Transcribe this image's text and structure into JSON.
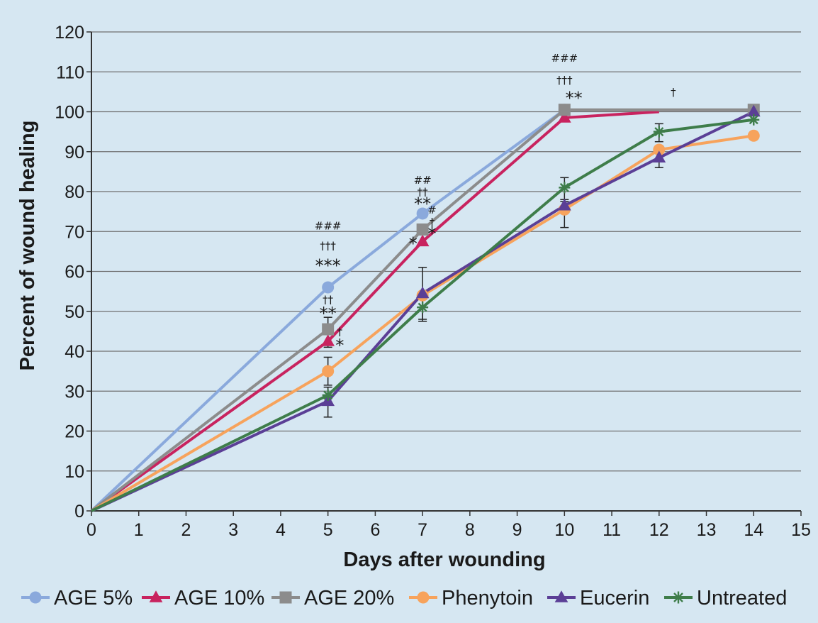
{
  "chart_data": {
    "type": "line",
    "title": "",
    "xlabel": "Days after wounding",
    "ylabel": "Percent of wound healing",
    "xlim": [
      0,
      15
    ],
    "ylim": [
      0,
      120
    ],
    "x_ticks": [
      "0",
      "1",
      "2",
      "3",
      "4",
      "5",
      "6",
      "7",
      "8",
      "9",
      "10",
      "11",
      "12",
      "13",
      "14",
      "15"
    ],
    "y_ticks": [
      "0",
      "10",
      "20",
      "30",
      "40",
      "50",
      "60",
      "70",
      "80",
      "90",
      "100",
      "110",
      "120"
    ],
    "grid": "horizontal",
    "legend_position": "bottom",
    "series": [
      {
        "name": "AGE 5%",
        "color": "#8aa9dc",
        "marker": "circle",
        "x": [
          0,
          5,
          7,
          10
        ],
        "y": [
          0,
          56,
          74.5,
          100.5
        ]
      },
      {
        "name": "AGE 10%",
        "color": "#c8235f",
        "marker": "triangle",
        "x": [
          0,
          5,
          7,
          10,
          12
        ],
        "y": [
          0,
          42.5,
          67.5,
          98.5,
          100
        ]
      },
      {
        "name": "AGE 20%",
        "color": "#8c8c8c",
        "marker": "square",
        "x": [
          0,
          5,
          7,
          10,
          14
        ],
        "y": [
          0,
          45.5,
          70.5,
          100.5,
          100.5
        ]
      },
      {
        "name": "Phenytoin",
        "color": "#f7a35c",
        "marker": "circle",
        "x": [
          0,
          5,
          7,
          10,
          12,
          14
        ],
        "y": [
          0,
          35,
          54,
          75.5,
          90.5,
          94
        ]
      },
      {
        "name": "Eucerin",
        "color": "#5b3f96",
        "marker": "triangle",
        "x": [
          0,
          5,
          7,
          10,
          12,
          14
        ],
        "y": [
          0,
          27.5,
          54.5,
          76.5,
          88.5,
          100
        ]
      },
      {
        "name": "Untreated",
        "color": "#3e7d4a",
        "marker": "star",
        "x": [
          0,
          5,
          7,
          10,
          12,
          14
        ],
        "y": [
          0,
          29,
          51,
          81,
          95,
          98
        ]
      }
    ],
    "annotations": [
      {
        "text": "###",
        "x": 5,
        "y": 70.5
      },
      {
        "text": "†††",
        "x": 5,
        "y": 65.5
      },
      {
        "text": "***",
        "x": 5,
        "y": 60
      },
      {
        "text": "††",
        "x": 5,
        "y": 52
      },
      {
        "text": "**",
        "x": 5,
        "y": 48
      },
      {
        "text": "†",
        "x": 5.25,
        "y": 44
      },
      {
        "text": "*",
        "x": 5.25,
        "y": 40
      },
      {
        "text": "##",
        "x": 7,
        "y": 82
      },
      {
        "text": "††",
        "x": 7,
        "y": 79
      },
      {
        "text": "**",
        "x": 7,
        "y": 75.5
      },
      {
        "text": "#",
        "x": 7.2,
        "y": 74.5
      },
      {
        "text": "†",
        "x": 7.2,
        "y": 71.5
      },
      {
        "text": "*",
        "x": 7.2,
        "y": 68
      },
      {
        "text": "*",
        "x": 6.8,
        "y": 65.5
      },
      {
        "text": "###",
        "x": 10,
        "y": 112.5
      },
      {
        "text": "†††",
        "x": 10,
        "y": 107
      },
      {
        "text": "**",
        "x": 10.2,
        "y": 102
      },
      {
        "text": "†",
        "x": 12.3,
        "y": 104
      }
    ],
    "error_bars": [
      {
        "x": 5,
        "y": 35,
        "low": 31.5,
        "high": 38.5
      },
      {
        "x": 5,
        "y": 27.5,
        "low": 23.5,
        "high": 31
      },
      {
        "x": 5,
        "y": 45.5,
        "low": 41,
        "high": 48.5
      },
      {
        "x": 7,
        "y": 54.5,
        "low": 48,
        "high": 61
      },
      {
        "x": 7,
        "y": 51,
        "low": 47.5,
        "high": 53
      },
      {
        "x": 10,
        "y": 81,
        "low": 78,
        "high": 83.5
      },
      {
        "x": 10,
        "y": 75.5,
        "low": 71,
        "high": 77.5
      },
      {
        "x": 12,
        "y": 95,
        "low": 92.5,
        "high": 97
      },
      {
        "x": 12,
        "y": 88.5,
        "low": 86,
        "high": 90.5
      }
    ]
  }
}
